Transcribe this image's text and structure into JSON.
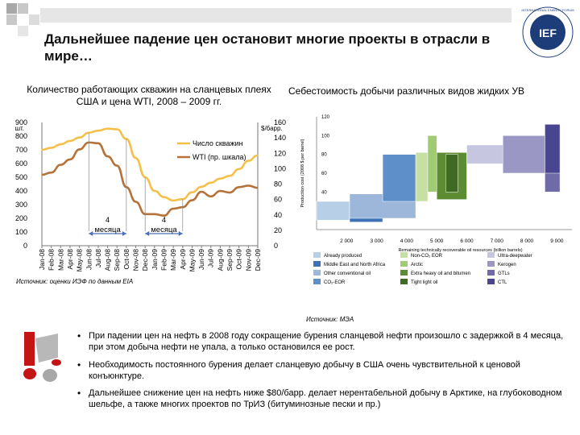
{
  "slide": {
    "title": "Дальнейшее падение цен остановит многие проекты в отрасли в мире…",
    "logo_text": "IEF",
    "logo_ring_text": "INTERNATIONAL ENERGY FORUM"
  },
  "left_chart": {
    "caption": "Количество работающих скважин на сланцевых плеях США и цена WTI, 2008 – 2009 гг.",
    "source": "Источник: оценки ИЭФ по данным EIA",
    "left_unit": "шт.",
    "right_unit": "$/барр.",
    "months": [
      "Jan-08",
      "Feb-08",
      "Mar-08",
      "Apr-08",
      "May-08",
      "Jun-08",
      "Jul-08",
      "Aug-08",
      "Sep-08",
      "Oct-08",
      "Nov-08",
      "Dec-08",
      "Jan-09",
      "Feb-09",
      "Mar-09",
      "Apr-09",
      "May-09",
      "Jun-09",
      "Jul-09",
      "Aug-09",
      "Sep-09",
      "Oct-09",
      "Nov-09",
      "Dec-09"
    ],
    "left_ticks": [
      "0",
      "100",
      "200",
      "300",
      "400",
      "500",
      "600",
      "700",
      "800",
      "900"
    ],
    "right_ticks": [
      "0",
      "20",
      "40",
      "60",
      "80",
      "100",
      "120",
      "140",
      "160"
    ],
    "legend": [
      {
        "label": "Число скважин",
        "color": "#f5c04a"
      },
      {
        "label": "WTI (пр. шкала)",
        "color": "#b5733a"
      }
    ],
    "annotations": [
      "4 месяца",
      "4 месяца"
    ]
  },
  "right_chart": {
    "caption": "Себестоимость добычи различных видов жидких УВ",
    "source": "Источник: МЭА",
    "y_label": "Production cost (2008 $ per barrel)",
    "x_label": "Remaining technically recoverable oil resources (billion barrels)",
    "y_ticks": [
      "20",
      "40",
      "60",
      "80",
      "100",
      "120"
    ],
    "x_ticks": [
      "2 000",
      "3 000",
      "4 000",
      "5 000",
      "6 000",
      "7 000",
      "8 000",
      "9 000"
    ],
    "legend": [
      {
        "label": "Already produced",
        "color": "#b7cfe7"
      },
      {
        "label": "Middle East and North Africa",
        "color": "#3f73b8"
      },
      {
        "label": "Other conventional oil",
        "color": "#9db7da"
      },
      {
        "label": "CO₂-EOR",
        "color": "#5f8fc8"
      },
      {
        "label": "Non-CO₂ EOR",
        "color": "#c6dfa4"
      },
      {
        "label": "Arctic",
        "color": "#9fcb72"
      },
      {
        "label": "Extra heavy oil and bitumen",
        "color": "#5d8c33"
      },
      {
        "label": "Tight light oil",
        "color": "#3f6a22"
      },
      {
        "label": "Ultra-deepwater",
        "color": "#c6c6e0"
      },
      {
        "label": "Kerogen",
        "color": "#9a97c4"
      },
      {
        "label": "GTLs",
        "color": "#6f6aa8"
      },
      {
        "label": "CTL",
        "color": "#4a4590"
      }
    ]
  },
  "bullets": [
    "При падении цен на нефть в 2008 году сокращение бурения сланцевой нефти произошло с задержкой в 4 месяца, при этом добыча нефти не упала, а только остановился ее рост.",
    "Необходимость постоянного бурения делает сланцевую добычу в США очень чувствительной к ценовой конъюнктуре.",
    "Дальнейшее снижение цен на нефть ниже $80/барр. делает нерентабельной добычу в Арктике, на глубоководном шельфе, а также многих проектов по ТрИЗ (битуминозные пески и пр.)"
  ],
  "chart_data": [
    {
      "type": "line",
      "title": "Количество работающих скважин на сланцевых плеях США и цена WTI, 2008 – 2009 гг.",
      "categories": [
        "Jan-08",
        "Feb-08",
        "Mar-08",
        "Apr-08",
        "May-08",
        "Jun-08",
        "Jul-08",
        "Aug-08",
        "Sep-08",
        "Oct-08",
        "Nov-08",
        "Dec-08",
        "Jan-09",
        "Feb-09",
        "Mar-09",
        "Apr-09",
        "May-09",
        "Jun-09",
        "Jul-09",
        "Aug-09",
        "Sep-09",
        "Oct-09",
        "Nov-09",
        "Dec-09"
      ],
      "ylabel": "шт.",
      "y2label": "$/барр.",
      "ylim": [
        0,
        900
      ],
      "y2lim": [
        0,
        160
      ],
      "series": [
        {
          "name": "Число скважин",
          "axis": "left",
          "color": "#f5c04a",
          "values": [
            700,
            715,
            740,
            765,
            790,
            825,
            840,
            855,
            850,
            780,
            640,
            500,
            400,
            355,
            330,
            340,
            390,
            430,
            460,
            490,
            510,
            560,
            620,
            660
          ]
        },
        {
          "name": "WTI (пр. шкала)",
          "axis": "right",
          "color": "#b5733a",
          "values": [
            92,
            95,
            105,
            112,
            125,
            134,
            133,
            116,
            104,
            76,
            57,
            41,
            41,
            39,
            48,
            50,
            59,
            70,
            64,
            71,
            69,
            76,
            78,
            75
          ]
        }
      ],
      "annotations": [
        "4 месяца",
        "4 месяца"
      ],
      "legend_position": "top-right",
      "grid": false
    },
    {
      "type": "bar",
      "title": "Себестоимость добычи различных видов жидких УВ",
      "xlabel": "Remaining technically recoverable oil resources (billion barrels)",
      "ylabel": "Production cost (2008 $ per barrel)",
      "ylim": [
        0,
        120
      ],
      "xlim": [
        1000,
        9500
      ],
      "segments": [
        {
          "name": "Already produced",
          "x0": 1000,
          "x1": 2100,
          "y0": 10,
          "y1": 30
        },
        {
          "name": "Middle East and North Africa",
          "x0": 2100,
          "x1": 3200,
          "y0": 8,
          "y1": 32
        },
        {
          "name": "Other conventional oil",
          "x0": 2100,
          "x1": 4300,
          "y0": 12,
          "y1": 38
        },
        {
          "name": "CO₂-EOR",
          "x0": 3200,
          "x1": 4300,
          "y0": 30,
          "y1": 80
        },
        {
          "name": "Non-CO₂ EOR",
          "x0": 4300,
          "x1": 4700,
          "y0": 30,
          "y1": 82
        },
        {
          "name": "Arctic",
          "x0": 4700,
          "x1": 5000,
          "y0": 40,
          "y1": 100
        },
        {
          "name": "Extra heavy oil and bitumen",
          "x0": 5000,
          "x1": 6000,
          "y0": 32,
          "y1": 82
        },
        {
          "name": "Tight light oil",
          "x0": 5300,
          "x1": 5700,
          "y0": 40,
          "y1": 80
        },
        {
          "name": "Ultra-deepwater",
          "x0": 6000,
          "x1": 7600,
          "y0": 70,
          "y1": 90
        },
        {
          "name": "Kerogen",
          "x0": 7200,
          "x1": 8600,
          "y0": 60,
          "y1": 100
        },
        {
          "name": "GTLs",
          "x0": 8600,
          "x1": 9100,
          "y0": 40,
          "y1": 110
        },
        {
          "name": "CTL",
          "x0": 8600,
          "x1": 9100,
          "y0": 60,
          "y1": 112
        }
      ],
      "legend_position": "bottom"
    }
  ]
}
